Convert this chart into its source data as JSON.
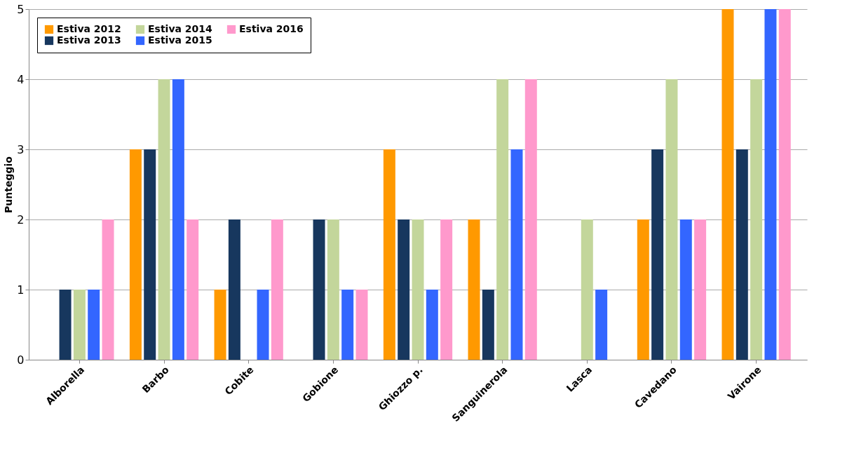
{
  "chart_data": {
    "type": "bar",
    "ylabel": "Punteggio",
    "categories": [
      "Alborella",
      "Barbo",
      "Cobite",
      "Gobione",
      "Ghiozzo p.",
      "Sanguinerola",
      "Lasca",
      "Cavedano",
      "Vairone"
    ],
    "series": [
      {
        "name": "Estiva 2012",
        "color": "#ff9900",
        "values": [
          0,
          3,
          1,
          0,
          3,
          2,
          0,
          2,
          5
        ]
      },
      {
        "name": "Estiva 2013",
        "color": "#17375e",
        "values": [
          1,
          3,
          2,
          2,
          2,
          1,
          0,
          3,
          3
        ]
      },
      {
        "name": "Estiva 2014",
        "color": "#c3d69b",
        "values": [
          1,
          4,
          0,
          2,
          2,
          4,
          2,
          4,
          4
        ]
      },
      {
        "name": "Estiva 2015",
        "color": "#3366ff",
        "values": [
          1,
          4,
          1,
          1,
          1,
          3,
          1,
          2,
          5
        ]
      },
      {
        "name": "Estiva 2016",
        "color": "#ff99cc",
        "values": [
          2,
          2,
          2,
          1,
          2,
          4,
          0,
          2,
          5
        ]
      }
    ],
    "ylim": [
      0,
      5
    ],
    "yticks": [
      0,
      1,
      2,
      3,
      4,
      5
    ],
    "grid": "y",
    "legend": "top left"
  }
}
